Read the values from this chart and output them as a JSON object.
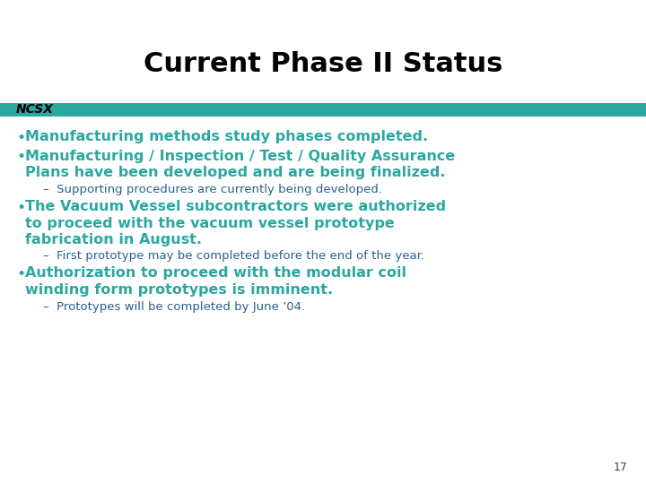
{
  "title": "Current Phase II Status",
  "title_color": "#000000",
  "title_fontsize": 22,
  "ncsx_label": "NCSX",
  "ncsx_color": "#000000",
  "ncsx_fontsize": 10,
  "bar_color": "#2aa8a0",
  "background_color": "#ffffff",
  "bullet_color": "#2aa8a0",
  "sub_bullet_color": "#2a5f8f",
  "bullet_fontsize": 11.5,
  "sub_fontsize": 9.5,
  "page_number": "17",
  "bullets": [
    {
      "type": "bullet",
      "text": "Manufacturing methods study phases completed.",
      "lines": 1
    },
    {
      "type": "bullet",
      "text": "Manufacturing / Inspection / Test / Quality Assurance\nPlans have been developed and are being finalized.",
      "lines": 2
    },
    {
      "type": "sub",
      "text": "–  Supporting procedures are currently being developed.",
      "lines": 1
    },
    {
      "type": "bullet",
      "text": "The Vacuum Vessel subcontractors were authorized\nto proceed with the vacuum vessel prototype\nfabrication in August.",
      "lines": 3
    },
    {
      "type": "sub",
      "text": "–  First prototype may be completed before the end of the year.",
      "lines": 1
    },
    {
      "type": "bullet",
      "text": "Authorization to proceed with the modular coil\nwinding form prototypes is imminent.",
      "lines": 2
    },
    {
      "type": "sub",
      "text": "–  Prototypes will be completed by June ’04.",
      "lines": 1
    }
  ]
}
